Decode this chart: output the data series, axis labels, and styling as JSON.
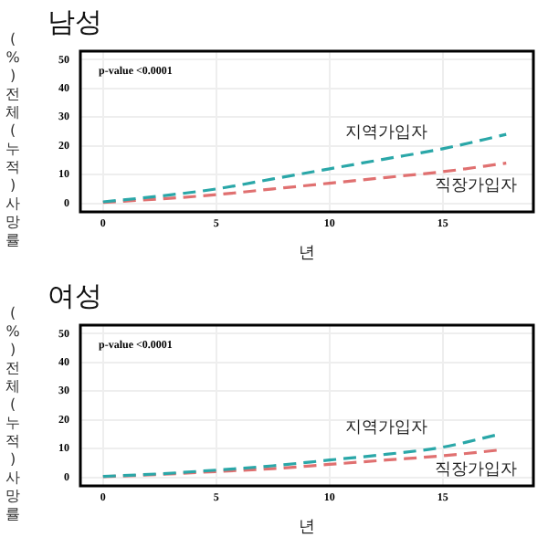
{
  "chart_data": [
    {
      "type": "line",
      "title": "남성",
      "xlabel": "년",
      "ylabel": "(%)전체(누적)사망률",
      "annotations": [
        "p-value <0.0001"
      ],
      "x": [
        0,
        2.5,
        5,
        7.5,
        10,
        12.5,
        15,
        17.8
      ],
      "xlim": [
        -1,
        19
      ],
      "xticks": [
        0,
        5,
        10,
        15
      ],
      "ylim": [
        -3,
        53
      ],
      "yticks": [
        0,
        10,
        20,
        30,
        40,
        50
      ],
      "grid": true,
      "legend": false,
      "marker": "none",
      "series": [
        {
          "name": "지역가입자",
          "color": "#2aa7a8",
          "line_style": "dashed",
          "values": [
            0.5,
            2.5,
            5,
            8.5,
            12,
            15.5,
            19,
            24
          ]
        },
        {
          "name": "직장가입자",
          "color": "#e07070",
          "line_style": "dashed",
          "values": [
            0.3,
            1.5,
            3,
            5,
            7,
            9,
            11,
            14
          ]
        }
      ]
    },
    {
      "type": "line",
      "title": "여성",
      "xlabel": "년",
      "ylabel": "(%)전체(누적)사망률",
      "annotations": [
        "p-value <0.0001"
      ],
      "x": [
        0,
        2.5,
        5,
        7.5,
        10,
        12.5,
        15,
        17.5
      ],
      "xlim": [
        -1,
        19
      ],
      "xticks": [
        0,
        5,
        10,
        15
      ],
      "ylim": [
        -3,
        53
      ],
      "yticks": [
        0,
        10,
        20,
        30,
        40,
        50
      ],
      "grid": true,
      "legend": false,
      "marker": "none",
      "series": [
        {
          "name": "지역가입자",
          "color": "#2aa7a8",
          "line_style": "dashed",
          "values": [
            0.3,
            1.2,
            2.5,
            4,
            6,
            8,
            10.5,
            15
          ]
        },
        {
          "name": "직장가입자",
          "color": "#e07070",
          "line_style": "dashed",
          "values": [
            0.2,
            1,
            2,
            3,
            4.5,
            6,
            7.5,
            9.5
          ]
        }
      ]
    }
  ]
}
